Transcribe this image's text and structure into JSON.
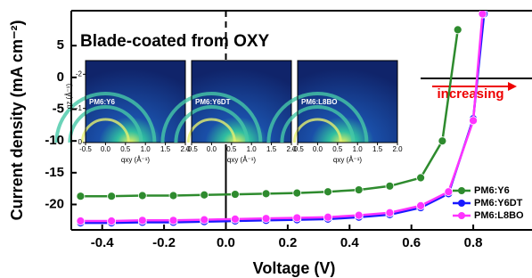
{
  "chart_data": {
    "type": "line",
    "title": "Blade-coated from OXY",
    "xlabel": "Voltage (V)",
    "ylabel": "Current density (mA cm⁻²)",
    "annotation": "increasing",
    "xlim": [
      -0.5,
      0.99
    ],
    "ylim": [
      -24,
      10.5
    ],
    "xticks": [
      -0.4,
      -0.2,
      {
        "value": 0,
        "label": "0.0"
      },
      0.2,
      0.4,
      0.6,
      0.8
    ],
    "yticks": [
      5,
      0,
      -5,
      -10,
      -15,
      -20
    ],
    "series": [
      {
        "name": "PM6:Y6",
        "color": "#2e8b2e",
        "x": [
          -0.47,
          -0.37,
          -0.27,
          -0.17,
          -0.07,
          0.03,
          0.13,
          0.23,
          0.33,
          0.43,
          0.53,
          0.63,
          0.7,
          0.75
        ],
        "values": [
          -18.7,
          -18.7,
          -18.6,
          -18.6,
          -18.5,
          -18.4,
          -18.3,
          -18.2,
          -18.0,
          -17.7,
          -17.1,
          -15.8,
          -10.0,
          7.5
        ]
      },
      {
        "name": "PM6:Y6DT",
        "color": "#1a1aff",
        "x": [
          -0.47,
          -0.37,
          -0.27,
          -0.17,
          -0.07,
          0.03,
          0.13,
          0.23,
          0.33,
          0.43,
          0.53,
          0.63,
          0.72,
          0.8,
          0.835
        ],
        "values": [
          -22.9,
          -22.9,
          -22.8,
          -22.8,
          -22.7,
          -22.6,
          -22.5,
          -22.4,
          -22.3,
          -22.0,
          -21.6,
          -20.5,
          -18.3,
          -6.5,
          10
        ]
      },
      {
        "name": "PM6:L8BO",
        "color": "#ff33ff",
        "x": [
          -0.47,
          -0.37,
          -0.27,
          -0.17,
          -0.07,
          0.03,
          0.13,
          0.23,
          0.33,
          0.43,
          0.53,
          0.63,
          0.72,
          0.8,
          0.83
        ],
        "values": [
          -22.6,
          -22.6,
          -22.5,
          -22.5,
          -22.4,
          -22.3,
          -22.2,
          -22.1,
          -22.0,
          -21.7,
          -21.3,
          -20.2,
          -18.0,
          -6.8,
          10
        ]
      }
    ],
    "insets": {
      "xlabel": "qxy (Å⁻¹)",
      "ylabel": "qz (Å⁻¹)",
      "xticks": [
        -0.5,
        {
          "value": 0,
          "label": "0.0"
        },
        0.5,
        {
          "value": 1,
          "label": "1.0"
        },
        1.5,
        {
          "value": 2,
          "label": "2.0"
        }
      ],
      "yticks": [
        0,
        -1,
        -2
      ],
      "panels": [
        "PM6:Y6",
        "PM6:Y6DT",
        "PM6:L8BO"
      ]
    }
  }
}
